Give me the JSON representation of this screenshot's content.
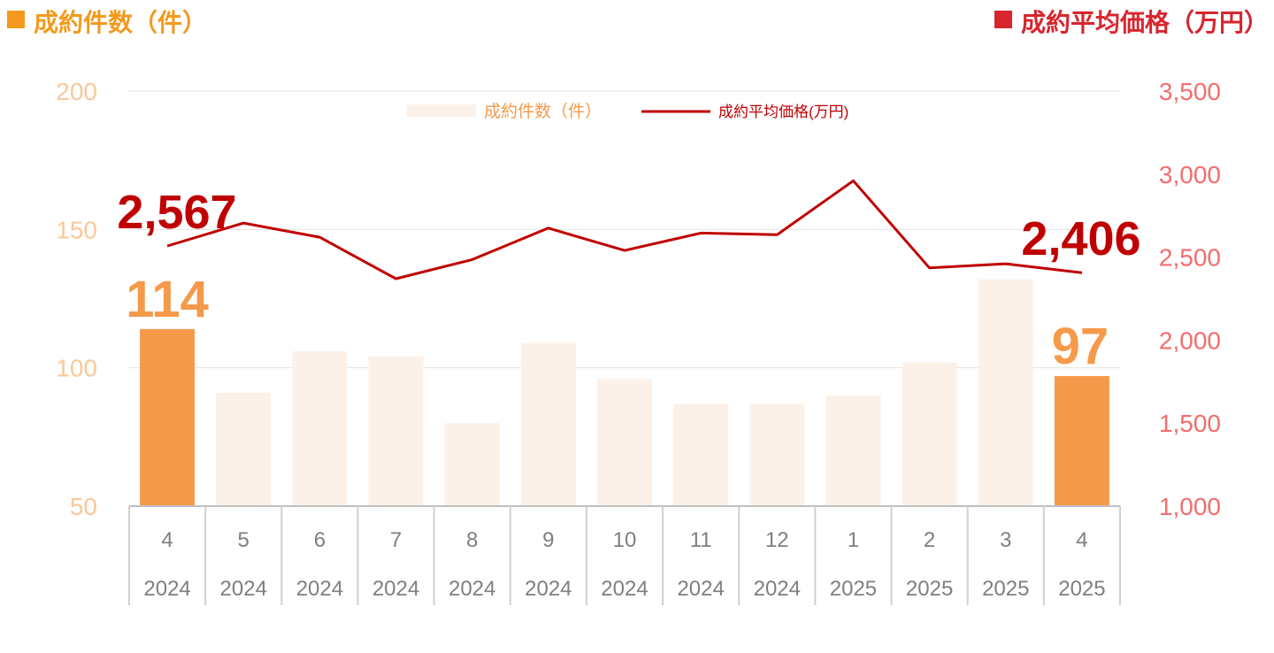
{
  "header": {
    "left_label": "成約件数（件）",
    "right_label": "成約平均価格（万円）"
  },
  "colors": {
    "count_header": "#f39a1e",
    "price_header": "#d7262e",
    "bar_highlight": "#f59a4a",
    "bar_muted": "#fcf1e8",
    "line": "#c00000",
    "left_axis_text": "#f8c89a",
    "right_axis_text": "#f46c6c",
    "count_label": "#f59a4a",
    "price_label": "#c00000"
  },
  "chart_data": {
    "type": "bar+line",
    "categories": [
      {
        "month": "4",
        "year": "2024"
      },
      {
        "month": "5",
        "year": "2024"
      },
      {
        "month": "6",
        "year": "2024"
      },
      {
        "month": "7",
        "year": "2024"
      },
      {
        "month": "8",
        "year": "2024"
      },
      {
        "month": "9",
        "year": "2024"
      },
      {
        "month": "10",
        "year": "2024"
      },
      {
        "month": "11",
        "year": "2024"
      },
      {
        "month": "12",
        "year": "2024"
      },
      {
        "month": "1",
        "year": "2025"
      },
      {
        "month": "2",
        "year": "2025"
      },
      {
        "month": "3",
        "year": "2025"
      },
      {
        "month": "4",
        "year": "2025"
      }
    ],
    "series": [
      {
        "name": "成約件数（件）",
        "type": "bar",
        "axis": "left",
        "values": [
          114,
          91,
          106,
          104,
          80,
          109,
          96,
          87,
          87,
          90,
          102,
          132,
          97
        ],
        "highlighted": [
          true,
          false,
          false,
          false,
          false,
          false,
          false,
          false,
          false,
          false,
          false,
          false,
          true
        ]
      },
      {
        "name": "成約平均価格(万円)",
        "type": "line",
        "axis": "right",
        "values": [
          2567,
          2705,
          2620,
          2370,
          2485,
          2675,
          2540,
          2645,
          2635,
          2960,
          2435,
          2460,
          2406
        ]
      }
    ],
    "left_axis": {
      "min": 50,
      "max": 200,
      "ticks": [
        "50",
        "100",
        "150",
        "200"
      ]
    },
    "right_axis": {
      "min": 1000,
      "max": 3500,
      "ticks": [
        "1,000",
        "1,500",
        "2,000",
        "2,500",
        "3,000",
        "3,500"
      ]
    },
    "gridlines": true,
    "legend_position": "top-center",
    "data_labels": [
      {
        "series": "count",
        "index": 0,
        "text": "114"
      },
      {
        "series": "count",
        "index": 12,
        "text": "97"
      },
      {
        "series": "price",
        "index": 0,
        "text": "2,567"
      },
      {
        "series": "price",
        "index": 12,
        "text": "2,406"
      }
    ]
  }
}
